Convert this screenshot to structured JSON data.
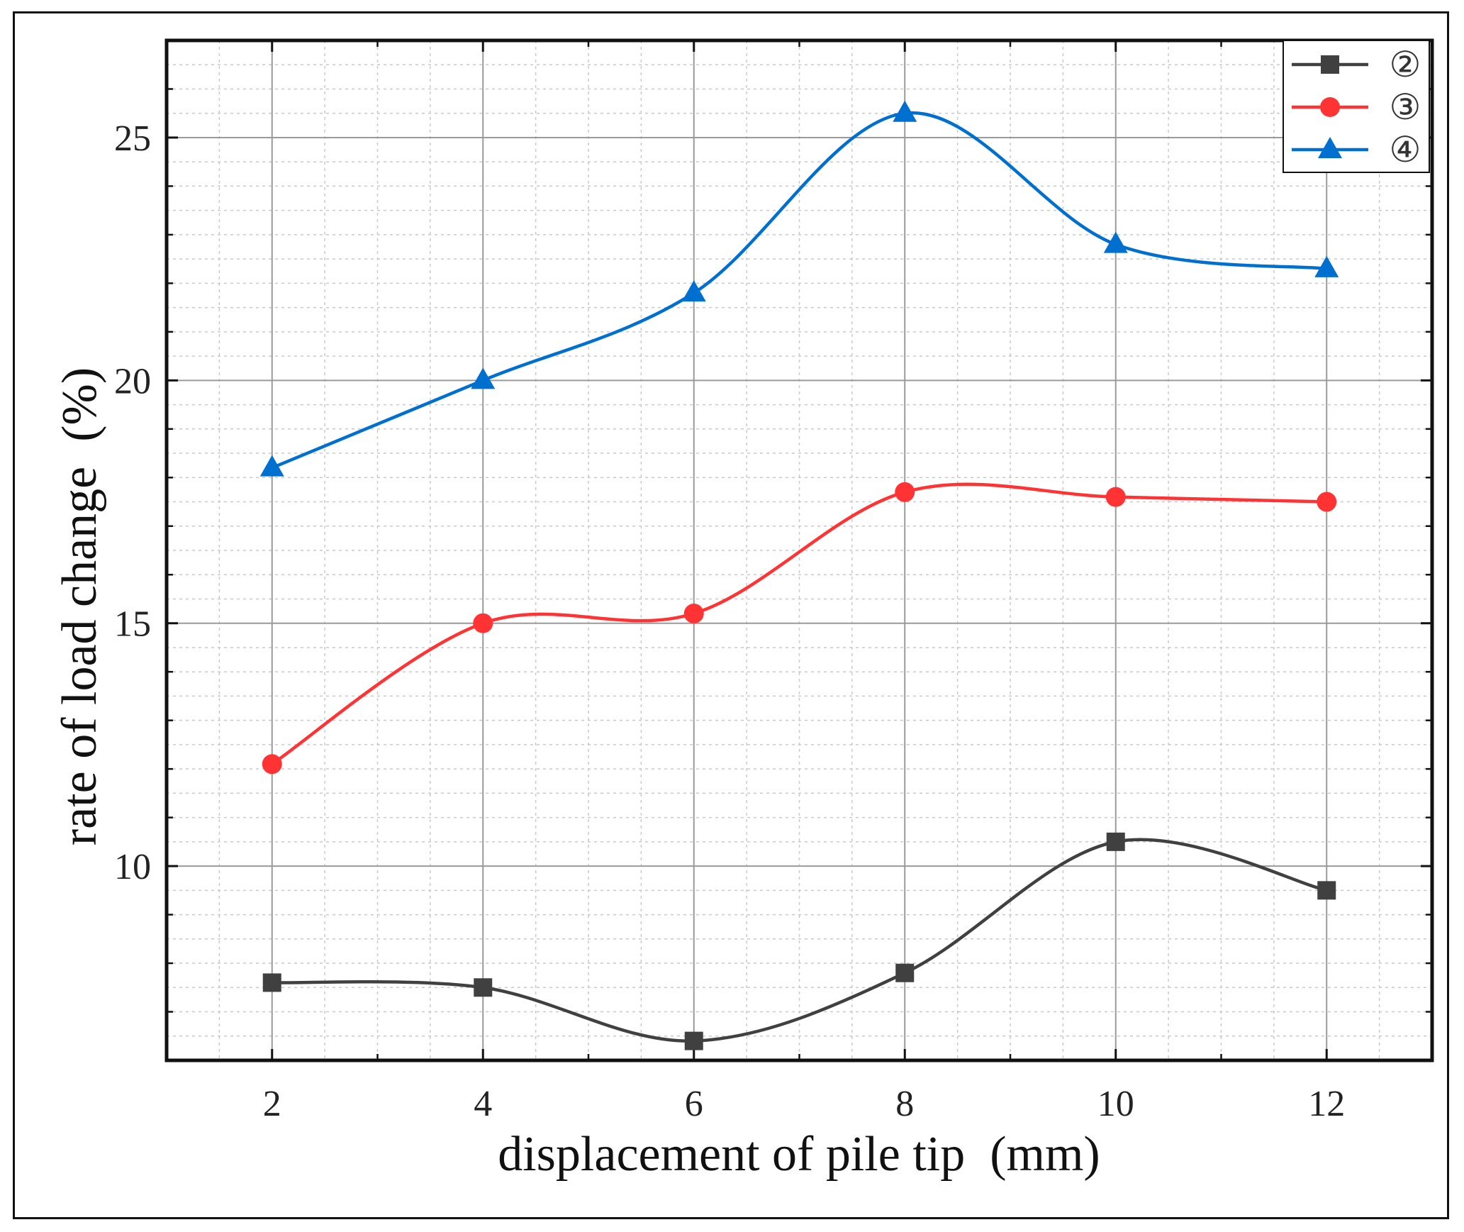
{
  "chart_data": {
    "type": "line",
    "title": "",
    "xlabel": "displacement of pile tip  (mm)",
    "ylabel": "rate of load change  (%)",
    "x": [
      2,
      4,
      6,
      8,
      10,
      12
    ],
    "xticks": [
      "2",
      "4",
      "6",
      "8",
      "10",
      "12"
    ],
    "yticks": [
      "10",
      "15",
      "20",
      "25"
    ],
    "ytick_values": [
      10,
      15,
      20,
      25
    ],
    "xlim": [
      1,
      13
    ],
    "ylim": [
      6,
      27
    ],
    "grid": true,
    "legend_position": "top-right",
    "smooth": true,
    "series": [
      {
        "name": "②",
        "color": "#404040",
        "marker": "square",
        "values": [
          7.6,
          7.5,
          6.4,
          7.8,
          10.5,
          9.5
        ]
      },
      {
        "name": "③",
        "color": "#ff3333",
        "marker": "circle",
        "values": [
          12.1,
          15.0,
          15.2,
          17.7,
          17.6,
          17.5
        ]
      },
      {
        "name": "④",
        "color": "#0070d0",
        "marker": "triangle",
        "values": [
          18.2,
          20.0,
          21.8,
          25.5,
          22.8,
          22.3
        ]
      }
    ]
  }
}
